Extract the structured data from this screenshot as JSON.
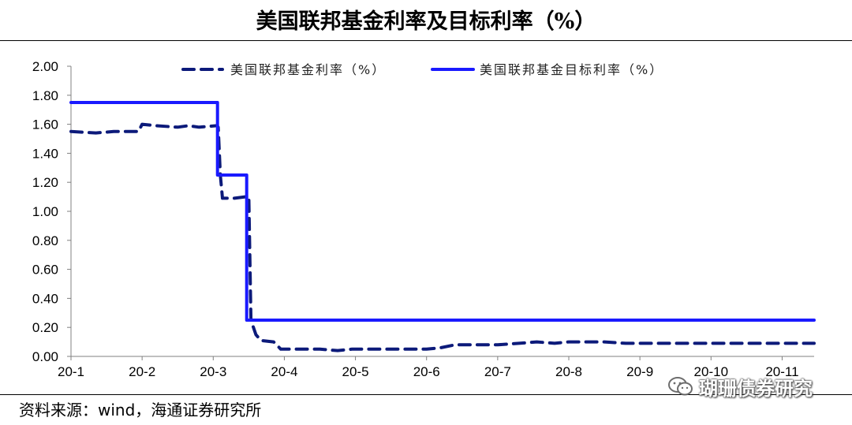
{
  "header": {
    "title": "美国联邦基金利率及目标利率（%）"
  },
  "footer": {
    "source": "资料来源：wind，海通证券研究所"
  },
  "watermark": {
    "text": "瑚珊债券研究"
  },
  "colors": {
    "effective": "#0c1a7a",
    "target": "#1a1aff",
    "axis": "#808080"
  },
  "chart_data": {
    "type": "line",
    "title": "美国联邦基金利率及目标利率（%）",
    "xlabel": "",
    "ylabel": "",
    "ylim": [
      0,
      2.0
    ],
    "xlim": [
      0,
      10.45
    ],
    "x_ticks": [
      0,
      1,
      2,
      3,
      4,
      5,
      6,
      7,
      8,
      9,
      10
    ],
    "x_tick_labels": [
      "20-1",
      "20-2",
      "20-3",
      "20-4",
      "20-5",
      "20-6",
      "20-7",
      "20-8",
      "20-9",
      "20-10",
      "20-11"
    ],
    "y_ticks": [
      0,
      0.2,
      0.4,
      0.6,
      0.8,
      1.0,
      1.2,
      1.4,
      1.6,
      1.8,
      2.0
    ],
    "y_tick_labels": [
      "0.00",
      "0.20",
      "0.40",
      "0.60",
      "0.80",
      "1.00",
      "1.20",
      "1.40",
      "1.60",
      "1.80",
      "2.00"
    ],
    "grid": false,
    "legend": "top",
    "series": [
      {
        "name": "美国联邦基金利率（%）",
        "style": "dashed",
        "points": [
          [
            0,
            1.55
          ],
          [
            0.35,
            1.54
          ],
          [
            0.6,
            1.55
          ],
          [
            0.95,
            1.55
          ],
          [
            1.0,
            1.6
          ],
          [
            1.2,
            1.59
          ],
          [
            1.5,
            1.58
          ],
          [
            1.65,
            1.59
          ],
          [
            1.8,
            1.58
          ],
          [
            2.05,
            1.59
          ],
          [
            2.07,
            1.58
          ],
          [
            2.1,
            1.25
          ],
          [
            2.13,
            1.09
          ],
          [
            2.3,
            1.09
          ],
          [
            2.45,
            1.1
          ],
          [
            2.5,
            1.1
          ],
          [
            2.53,
            0.25
          ],
          [
            2.6,
            0.15
          ],
          [
            2.67,
            0.11
          ],
          [
            2.85,
            0.1
          ],
          [
            2.95,
            0.05
          ],
          [
            3.5,
            0.05
          ],
          [
            3.75,
            0.04
          ],
          [
            3.95,
            0.05
          ],
          [
            4.5,
            0.05
          ],
          [
            5.0,
            0.05
          ],
          [
            5.2,
            0.06
          ],
          [
            5.4,
            0.08
          ],
          [
            5.7,
            0.08
          ],
          [
            6.0,
            0.08
          ],
          [
            6.3,
            0.09
          ],
          [
            6.55,
            0.1
          ],
          [
            6.8,
            0.09
          ],
          [
            7.0,
            0.1
          ],
          [
            7.5,
            0.1
          ],
          [
            7.8,
            0.09
          ],
          [
            8.5,
            0.09
          ],
          [
            9.0,
            0.09
          ],
          [
            10.45,
            0.09
          ]
        ]
      },
      {
        "name": "美国联邦基金目标利率（%）",
        "style": "solid",
        "points": [
          [
            0,
            1.75
          ],
          [
            2.06,
            1.75
          ],
          [
            2.06,
            1.25
          ],
          [
            2.47,
            1.25
          ],
          [
            2.47,
            0.25
          ],
          [
            10.45,
            0.25
          ]
        ]
      }
    ]
  }
}
